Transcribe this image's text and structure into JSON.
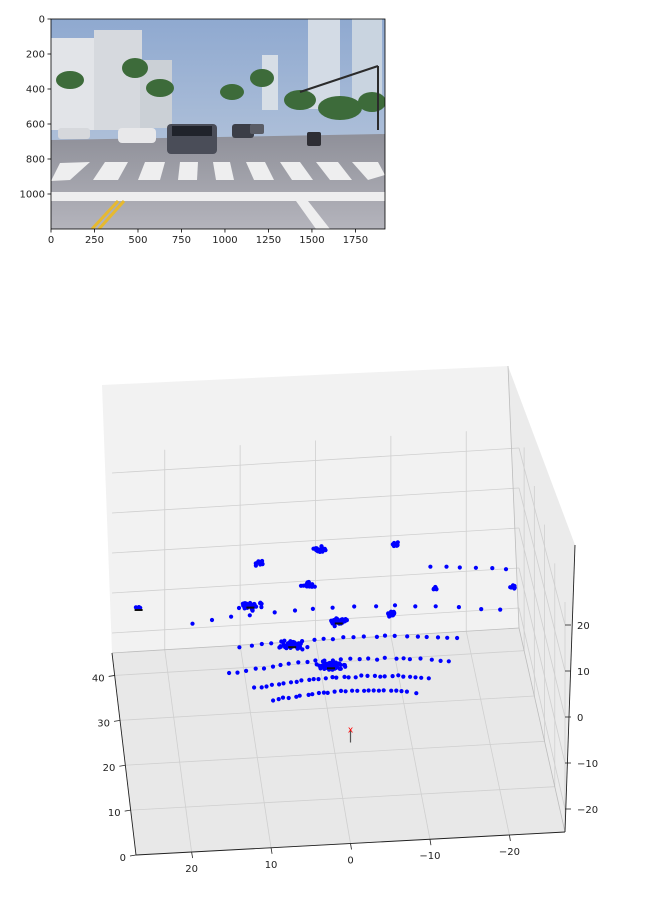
{
  "chart_data": [
    {
      "type": "image",
      "x_ticks": [
        "0",
        "250",
        "500",
        "750",
        "1000",
        "1250",
        "1500",
        "1750"
      ],
      "y_ticks": [
        "0",
        "200",
        "400",
        "600",
        "800",
        "1000"
      ],
      "x_tick_values": [
        0,
        250,
        500,
        750,
        1000,
        1250,
        1500,
        1750
      ],
      "y_tick_values": [
        0,
        200,
        400,
        600,
        800,
        1000
      ],
      "xlim": [
        0,
        1920
      ],
      "ylim": [
        1200,
        0
      ],
      "colors": {
        "sky": "#9fb6d6",
        "road": "#a7a8b0",
        "palm": "#3d6b3a",
        "building": "#d9dde2",
        "crosswalk": "#f2f2f2",
        "lane_yellow": "#e6b92f"
      }
    },
    {
      "type": "scatter3d",
      "axis_x_ticks": [
        "0",
        "10",
        "20",
        "30",
        "40"
      ],
      "axis_y_ticks": [
        "20",
        "10",
        "0",
        "−10",
        "−20"
      ],
      "axis_z_ticks": [
        "20",
        "10",
        "0",
        "−10",
        "−20"
      ],
      "xlim": [
        0,
        45
      ],
      "ylim": [
        -27,
        27
      ],
      "zlim": [
        -25,
        25
      ],
      "point_color": "#0000ff",
      "origin_marker": {
        "symbol": "x",
        "color": "#ff0000",
        "x": 0,
        "y": 0,
        "z": 0
      },
      "clusters": [
        {
          "x": 15,
          "y": 1,
          "z": 0,
          "spread": 2.2,
          "n": 60
        },
        {
          "x": 20,
          "y": 5.5,
          "z": 0.5,
          "spread": 2.2,
          "n": 45
        },
        {
          "x": 25,
          "y": -1,
          "z": 0.5,
          "spread": 1.5,
          "n": 30
        },
        {
          "x": 30,
          "y": 10,
          "z": 0.5,
          "spread": 2.5,
          "n": 35
        },
        {
          "x": 26,
          "y": -8,
          "z": 0.5,
          "spread": 1,
          "n": 15
        },
        {
          "x": 34,
          "y": 2,
          "z": 0.5,
          "spread": 1.3,
          "n": 18
        },
        {
          "x": 38,
          "y": 8,
          "z": 2.5,
          "spread": 1,
          "n": 12
        },
        {
          "x": 40,
          "y": 0,
          "z": 3,
          "spread": 1.2,
          "n": 16
        },
        {
          "x": 40,
          "y": -10,
          "z": 3,
          "spread": 0.8,
          "n": 10
        },
        {
          "x": 30,
          "y": -14,
          "z": 2,
          "spread": 0.8,
          "n": 8
        },
        {
          "x": 31,
          "y": 24.5,
          "z": 0.5,
          "spread": 0.6,
          "n": 8
        },
        {
          "x": 28,
          "y": -24,
          "z": 3,
          "spread": 0.6,
          "n": 6
        }
      ],
      "rings": [
        {
          "r": 10,
          "y_min": -9,
          "y_max": 9,
          "z": -1,
          "n": 26
        },
        {
          "r": 13,
          "y_min": -11,
          "y_max": 11,
          "z": -0.7,
          "n": 30
        },
        {
          "r": 17,
          "y_min": -14,
          "y_max": 14,
          "z": -0.5,
          "n": 26
        },
        {
          "r": 22,
          "y_min": -16,
          "y_max": 12,
          "z": -0.3,
          "n": 22
        },
        {
          "r": 28,
          "y_min": -22,
          "y_max": 18,
          "z": 0.8,
          "n": 16
        },
        {
          "r": 36,
          "y_min": -24,
          "y_max": -14,
          "z": 2,
          "n": 6
        }
      ],
      "dark_points": [
        {
          "x": 31,
          "y": 24.5,
          "z": 0.5
        },
        {
          "x": 15,
          "y": 1,
          "z": 0
        },
        {
          "x": 20,
          "y": 5.5,
          "z": 0.5
        },
        {
          "x": 25,
          "y": -1,
          "z": 0.5
        },
        {
          "x": 30,
          "y": 10,
          "z": 0.5
        }
      ]
    }
  ]
}
